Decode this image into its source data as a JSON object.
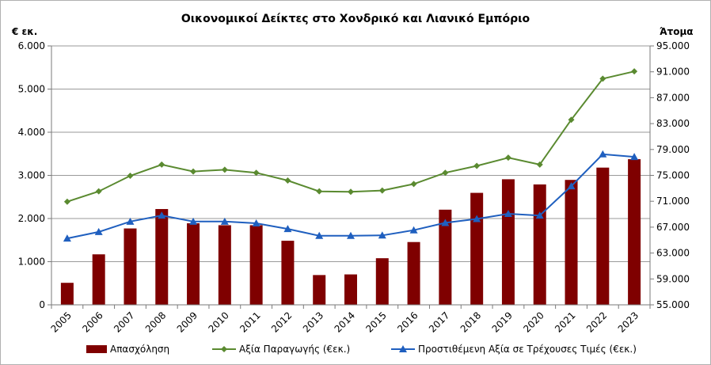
{
  "chart_data": {
    "type": "bar+line",
    "title": "Οικονομικοί  Δείκτες στο Χονδρικό και Λιανικό Εμπόριο",
    "left_axis_unit": "€ εκ.",
    "right_axis_unit": "Άτομα",
    "categories": [
      "2005",
      "2006",
      "2007",
      "2008",
      "2009",
      "2010",
      "2011",
      "2012",
      "2013",
      "2014",
      "2015",
      "2016",
      "2017",
      "2018",
      "2019",
      "2020",
      "2021",
      "2022",
      "2023"
    ],
    "left_axis": {
      "min": 0,
      "max": 6000,
      "step": 1000,
      "tick_labels": [
        "0",
        "1.000",
        "2.000",
        "3.000",
        "4.000",
        "5.000",
        "6.000"
      ]
    },
    "right_axis": {
      "min": 55000,
      "max": 95000,
      "step": 4000,
      "tick_labels": [
        "55.000",
        "59.000",
        "63.000",
        "67.000",
        "71.000",
        "75.000",
        "79.000",
        "83.000",
        "87.000",
        "91.000",
        "95.000"
      ]
    },
    "grid": "horizontal",
    "legend_position": "bottom",
    "series": [
      {
        "name": "Απασχόληση",
        "kind": "bar",
        "axis": "right",
        "color": "#7f0000",
        "values": [
          58400,
          62800,
          66800,
          69800,
          67600,
          67300,
          67300,
          64900,
          59600,
          59700,
          62200,
          64700,
          69700,
          72300,
          74400,
          73600,
          74300,
          76200,
          77500
        ]
      },
      {
        "name": "Αξία Παραγωγής (€εκ.)",
        "kind": "line",
        "axis": "left",
        "color": "#5a8a30",
        "marker": "diamond",
        "values": [
          2390,
          2630,
          2990,
          3250,
          3090,
          3130,
          3060,
          2880,
          2630,
          2620,
          2650,
          2800,
          3060,
          3220,
          3410,
          3250,
          4290,
          5240,
          5410
        ]
      },
      {
        "name": "Προστιθέμενη Αξία σε Τρέχουσες Τιμές (€εκ.)",
        "kind": "line",
        "axis": "left",
        "color": "#1f5fbf",
        "marker": "triangle",
        "values": [
          1540,
          1690,
          1930,
          2070,
          1930,
          1930,
          1890,
          1760,
          1600,
          1600,
          1610,
          1730,
          1900,
          1990,
          2110,
          2070,
          2750,
          3490,
          3430
        ]
      }
    ]
  }
}
